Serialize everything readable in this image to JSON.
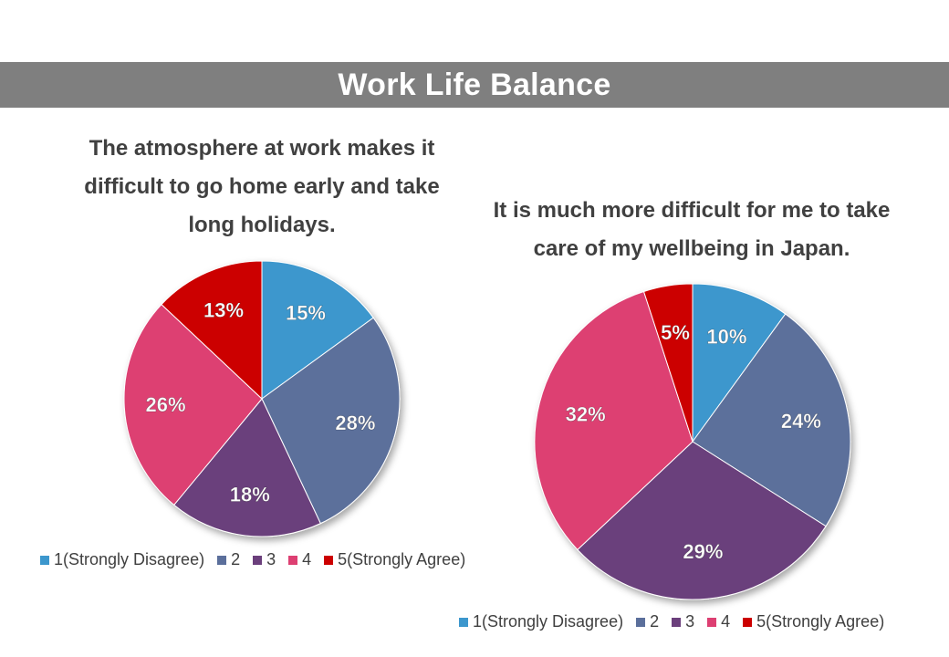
{
  "header": {
    "title": "Work Life Balance"
  },
  "legend": {
    "entries": [
      "1(Strongly Disagree)",
      "2",
      "3",
      "4",
      "5(Strongly Agree)"
    ],
    "colors": [
      "#3c97cd",
      "#5b6f9b",
      "#6b3f7c",
      "#dd3f72",
      "#cc0000"
    ]
  },
  "chart_data": [
    {
      "type": "pie",
      "title_lines": [
        "The atmosphere at work makes it",
        "difficult to go home early and take",
        "long holidays."
      ],
      "categories": [
        "1(Strongly Disagree)",
        "2",
        "3",
        "4",
        "5(Strongly Agree)"
      ],
      "values": [
        15,
        28,
        18,
        26,
        13
      ],
      "labels": [
        "15%",
        "28%",
        "18%",
        "26%",
        "13%"
      ],
      "legend_position": "bottom"
    },
    {
      "type": "pie",
      "title_lines": [
        "It is much more difficult for me to take",
        "care of my wellbeing in Japan."
      ],
      "categories": [
        "1(Strongly Disagree)",
        "2",
        "3",
        "4",
        "5(Strongly Agree)"
      ],
      "values": [
        10,
        24,
        29,
        32,
        5
      ],
      "labels": [
        "10%",
        "24%",
        "29%",
        "32%",
        "5%"
      ],
      "legend_position": "bottom"
    }
  ]
}
